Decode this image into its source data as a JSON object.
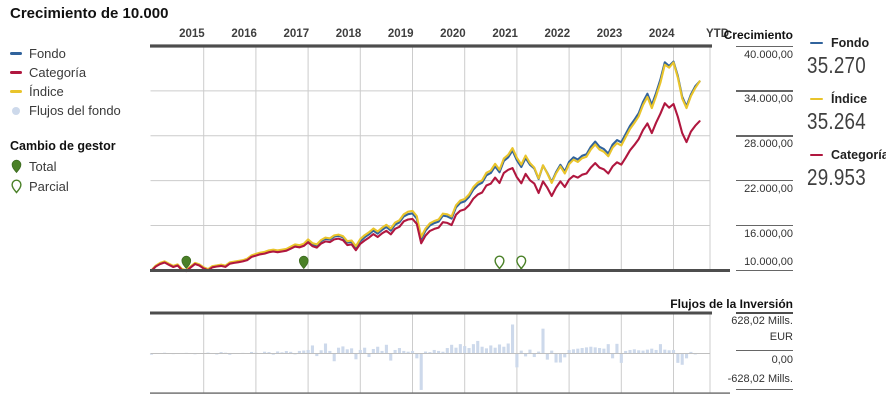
{
  "title": "Crecimiento de 10.000",
  "legend": {
    "series": [
      {
        "id": "fondo",
        "label": "Fondo",
        "color": "#31639c",
        "swatch": "line"
      },
      {
        "id": "categoria",
        "label": "Categoría",
        "color": "#b0173f",
        "swatch": "line"
      },
      {
        "id": "indice",
        "label": "Índice",
        "color": "#e9c42b",
        "swatch": "line"
      },
      {
        "id": "flujos-del-fondo",
        "label": "Flujos del fondo",
        "color": "#cdd9eb",
        "swatch": "dot"
      }
    ],
    "manager_change": {
      "title": "Cambio de gestor",
      "items": [
        {
          "id": "total",
          "label": "Total",
          "marker": "pin-filled",
          "color": "#4a8027"
        },
        {
          "id": "parcial",
          "label": "Parcial",
          "marker": "pin-hollow",
          "color": "#4a8027"
        }
      ]
    }
  },
  "growth_chart": {
    "right_axis_title": "Crecimiento",
    "x_labels": [
      "2015",
      "2016",
      "2017",
      "2018",
      "2019",
      "2020",
      "2021",
      "2022",
      "2023",
      "2024",
      "YTD"
    ],
    "y_tick_labels": [
      "40.000,00",
      "34.000,00",
      "28.000,00",
      "22.000,00",
      "16.000,00",
      "10.000,00"
    ],
    "y_tick_values": [
      40000,
      34000,
      28000,
      22000,
      16000,
      10000
    ]
  },
  "summary": {
    "items": [
      {
        "id": "fondo",
        "label": "Fondo",
        "value": "35.270",
        "color": "#31639c"
      },
      {
        "id": "indice",
        "label": "Índice",
        "value": "35.264",
        "color": "#e9c42b"
      },
      {
        "id": "categoria",
        "label": "Categoría",
        "value": "29.953",
        "color": "#b0173f"
      }
    ]
  },
  "flows_chart": {
    "title": "Flujos de la Inversión",
    "y_tick_labels": [
      "628,02 Mills.",
      "EUR",
      "0,00",
      "-628,02 Mills."
    ],
    "currency": "EUR"
  },
  "chart_data": [
    {
      "type": "line",
      "title": "Crecimiento de 10.000",
      "x_start": "2015-01",
      "x_end": "2025-07",
      "frequency": "monthly",
      "x_axis_labels": [
        "2015",
        "2016",
        "2017",
        "2018",
        "2019",
        "2020",
        "2021",
        "2022",
        "2023",
        "2024",
        "YTD"
      ],
      "ylim": [
        10000,
        40000
      ],
      "y_ticks": [
        10000,
        16000,
        22000,
        28000,
        34000,
        40000
      ],
      "grid": true,
      "legend_position": "left",
      "series": [
        {
          "name": "Fondo",
          "color": "#31639c",
          "final_value": 35270,
          "values": [
            10000,
            10600,
            10950,
            11150,
            10850,
            10550,
            10750,
            10150,
            9980,
            10500,
            10950,
            10750,
            10350,
            10120,
            10520,
            10620,
            10720,
            10580,
            11020,
            11120,
            11220,
            11320,
            11520,
            11950,
            12150,
            12320,
            12420,
            12620,
            12720,
            12620,
            12720,
            12820,
            13120,
            13420,
            13320,
            13520,
            14050,
            13520,
            13320,
            13920,
            14220,
            14120,
            14520,
            14620,
            14420,
            13720,
            13820,
            13020,
            13920,
            14420,
            14820,
            15320,
            14920,
            15420,
            15820,
            15320,
            16120,
            16420,
            17220,
            17520,
            17620,
            16920,
            14180,
            15320,
            16020,
            16320,
            16520,
            17320,
            17220,
            16920,
            18420,
            19020,
            19220,
            19820,
            20820,
            21420,
            21720,
            22720,
            23020,
            23920,
            23120,
            24620,
            25120,
            26020,
            24720,
            23820,
            25020,
            24120,
            23620,
            22220,
            24020,
            23020,
            21820,
            23120,
            24120,
            23220,
            24520,
            25120,
            24820,
            25320,
            25520,
            26520,
            27220,
            26520,
            26220,
            25620,
            26820,
            27420,
            27120,
            28220,
            29320,
            30120,
            31020,
            32520,
            33620,
            32120,
            33720,
            35520,
            37820,
            37320,
            37920,
            36020,
            33220,
            31920,
            33520,
            34620,
            35270
          ]
        },
        {
          "name": "Índice",
          "color": "#e9c42b",
          "final_value": 35264,
          "values": [
            10020,
            10640,
            11000,
            11200,
            10900,
            10600,
            10800,
            10200,
            10030,
            10550,
            11000,
            10800,
            10400,
            10170,
            10570,
            10670,
            10770,
            10630,
            11070,
            11170,
            11270,
            11370,
            11570,
            12000,
            12200,
            12370,
            12470,
            12670,
            12770,
            12670,
            12770,
            12870,
            13170,
            13470,
            13370,
            13570,
            14150,
            13650,
            13470,
            14070,
            14380,
            14280,
            14680,
            14780,
            14580,
            13900,
            14000,
            13250,
            14200,
            14700,
            15100,
            15600,
            15200,
            15700,
            16100,
            15600,
            16400,
            16700,
            17500,
            17850,
            17950,
            17250,
            14480,
            15600,
            16300,
            16600,
            16800,
            17600,
            17500,
            17200,
            18700,
            19350,
            19550,
            20150,
            21150,
            21750,
            22050,
            23050,
            23350,
            24250,
            23450,
            24950,
            25450,
            26350,
            25050,
            24150,
            25350,
            24350,
            23750,
            22300,
            24050,
            22950,
            21700,
            22950,
            23900,
            22950,
            24200,
            24800,
            24500,
            25000,
            25200,
            26150,
            26850,
            26150,
            25850,
            25250,
            26400,
            27000,
            26700,
            27800,
            28900,
            29700,
            30600,
            32100,
            33200,
            31700,
            33300,
            35100,
            37500,
            37100,
            37800,
            35800,
            33000,
            31700,
            33300,
            34400,
            35264
          ]
        },
        {
          "name": "Categoría",
          "color": "#b0173f",
          "final_value": 29953,
          "values": [
            9950,
            10520,
            10850,
            11050,
            10750,
            10450,
            10650,
            10050,
            9900,
            10400,
            10850,
            10650,
            10250,
            10020,
            10420,
            10520,
            10600,
            10470,
            10900,
            11000,
            11100,
            11200,
            11380,
            11800,
            11980,
            12150,
            12250,
            12430,
            12530,
            12430,
            12530,
            12630,
            12900,
            13180,
            13080,
            13280,
            13750,
            13250,
            13050,
            13600,
            13880,
            13780,
            14150,
            14250,
            14050,
            13380,
            13480,
            12700,
            13550,
            14000,
            14380,
            14850,
            14470,
            14950,
            15300,
            14820,
            15560,
            15830,
            16560,
            16800,
            16880,
            16220,
            13620,
            14650,
            15280,
            15550,
            15720,
            16450,
            16350,
            16070,
            17450,
            17980,
            18150,
            18700,
            19600,
            20150,
            20420,
            21350,
            21600,
            22400,
            21680,
            23020,
            23450,
            23680,
            22450,
            21650,
            22900,
            22050,
            21600,
            20350,
            21900,
            21050,
            19950,
            21050,
            21900,
            21150,
            22150,
            22650,
            22400,
            22800,
            22950,
            23750,
            24350,
            23750,
            23500,
            22950,
            23900,
            24450,
            24150,
            25050,
            26050,
            26750,
            27550,
            28750,
            29650,
            28350,
            29750,
            30950,
            32350,
            31750,
            32250,
            30550,
            28350,
            27150,
            28550,
            29350,
            29953
          ]
        }
      ],
      "manager_changes": [
        {
          "type": "Total",
          "marker": "filled",
          "date": "2015-09"
        },
        {
          "type": "Total",
          "marker": "filled",
          "date": "2017-12"
        },
        {
          "type": "Parcial",
          "marker": "hollow",
          "date": "2021-09"
        },
        {
          "type": "Parcial",
          "marker": "hollow",
          "date": "2022-02"
        }
      ]
    },
    {
      "type": "bar",
      "title": "Flujos de la Inversión",
      "unit": "Mills. EUR",
      "x_start": "2015-01",
      "x_end": "2025-07",
      "frequency": "monthly",
      "ylim": [
        -628.02,
        628.02
      ],
      "y_ticks": [
        628.02,
        0,
        -628.02
      ],
      "color": "#cdd9eb",
      "values": [
        -18,
        8,
        0,
        12,
        0,
        -10,
        6,
        0,
        10,
        0,
        -12,
        5,
        0,
        14,
        0,
        -16,
        22,
        12,
        -20,
        8,
        0,
        10,
        6,
        24,
        12,
        8,
        28,
        22,
        -18,
        32,
        18,
        38,
        26,
        -14,
        40,
        46,
        55,
        125,
        -40,
        50,
        155,
        40,
        -120,
        90,
        110,
        65,
        80,
        -90,
        55,
        90,
        -55,
        70,
        105,
        40,
        135,
        -110,
        55,
        85,
        40,
        28,
        40,
        -75,
        -565,
        30,
        22,
        55,
        40,
        28,
        85,
        135,
        90,
        145,
        115,
        85,
        145,
        195,
        105,
        80,
        125,
        90,
        140,
        105,
        155,
        450,
        -215,
        45,
        -45,
        60,
        -55,
        30,
        385,
        -95,
        45,
        -140,
        -140,
        -60,
        55,
        65,
        75,
        85,
        95,
        105,
        95,
        85,
        75,
        145,
        -75,
        150,
        -145,
        40,
        55,
        65,
        50,
        45,
        60,
        75,
        55,
        145,
        60,
        50,
        55,
        -145,
        -175,
        -75,
        25,
        -15,
        0
      ]
    }
  ]
}
